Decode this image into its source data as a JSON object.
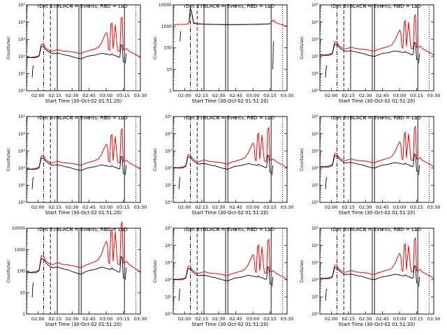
{
  "figure": {
    "ylabel": "Counts/sec",
    "xlabel": "Start Time (30-Oct-02 01:51:20)",
    "time_ticks": [
      "02:00",
      "02:15",
      "02:30",
      "02:45",
      "03:00",
      "03:15",
      "03:30"
    ],
    "colors": {
      "events": "#000000",
      "lld": "#ff0000",
      "axes": "#000000"
    }
  },
  "chart_data": [
    {
      "type": "line",
      "title": "Det 1: BLACK = Events, RED = LLD",
      "yscale": "log",
      "ylim": [
        1,
        100000
      ],
      "yticks": [
        "10⁰",
        "10¹",
        "10²",
        "10³",
        "10⁴",
        "10⁵"
      ],
      "xlim": [
        0,
        100
      ],
      "x_tick_values": [
        10,
        25,
        40,
        55,
        70,
        85,
        100
      ]
    },
    {
      "type": "line",
      "title": "Det 2: BLACK = Events, RED = LLD",
      "yscale": "log",
      "ylim": [
        1,
        10000
      ],
      "yticks": [
        "1",
        "10",
        "100",
        "1000",
        "10000"
      ],
      "xlim": [
        0,
        100
      ],
      "x_tick_values": [
        10,
        25,
        40,
        55,
        70,
        85,
        100
      ]
    },
    {
      "type": "line",
      "title": "Det 3: BLACK = Events, RED = LLD",
      "yscale": "log",
      "ylim": [
        1,
        100000
      ],
      "yticks": [
        "10⁰",
        "10¹",
        "10²",
        "10³",
        "10⁴",
        "10⁵"
      ],
      "xlim": [
        0,
        100
      ],
      "x_tick_values": [
        10,
        25,
        40,
        55,
        70,
        85,
        100
      ]
    },
    {
      "type": "line",
      "title": "Det 4: BLACK = Events, RED = LLD",
      "yscale": "log",
      "ylim": [
        1,
        100000
      ],
      "yticks": [
        "10⁰",
        "10¹",
        "10²",
        "10³",
        "10⁴",
        "10⁵"
      ],
      "xlim": [
        0,
        100
      ],
      "x_tick_values": [
        10,
        25,
        40,
        55,
        70,
        85,
        100
      ]
    },
    {
      "type": "line",
      "title": "Det 5: BLACK = Events, RED = LLD",
      "yscale": "log",
      "ylim": [
        1,
        100000
      ],
      "yticks": [
        "10⁰",
        "10¹",
        "10²",
        "10³",
        "10⁴",
        "10⁵"
      ],
      "xlim": [
        0,
        100
      ],
      "x_tick_values": [
        10,
        25,
        40,
        55,
        70,
        85,
        100
      ]
    },
    {
      "type": "line",
      "title": "Det 6: BLACK = Events, RED = LLD",
      "yscale": "log",
      "ylim": [
        1,
        100000
      ],
      "yticks": [
        "10⁰",
        "10¹",
        "10²",
        "10³",
        "10⁴",
        "10⁵"
      ],
      "xlim": [
        0,
        100
      ],
      "x_tick_values": [
        10,
        25,
        40,
        55,
        70,
        85,
        100
      ]
    },
    {
      "type": "line",
      "title": "Det 7: BLACK = Events, RED = LLD",
      "yscale": "log",
      "ylim": [
        1,
        10000
      ],
      "yticks": [
        "1",
        "10",
        "100",
        "1000",
        "10000"
      ],
      "xlim": [
        0,
        100
      ],
      "x_tick_values": [
        10,
        25,
        40,
        55,
        70,
        85,
        100
      ]
    },
    {
      "type": "line",
      "title": "Det 8: BLACK = Events, RED = LLD",
      "yscale": "log",
      "ylim": [
        1,
        100000
      ],
      "yticks": [
        "10⁰",
        "10¹",
        "10²",
        "10³",
        "10⁴",
        "10⁵"
      ],
      "xlim": [
        0,
        100
      ],
      "x_tick_values": [
        10,
        25,
        40,
        55,
        70,
        85,
        100
      ]
    },
    {
      "type": "line",
      "title": "Det 9: BLACK = Events, RED = LLD",
      "yscale": "log",
      "ylim": [
        1,
        100000
      ],
      "yticks": [
        "10⁰",
        "10¹",
        "10²",
        "10³",
        "10⁴",
        "10⁵"
      ],
      "xlim": [
        0,
        100
      ],
      "x_tick_values": [
        10,
        25,
        40,
        55,
        70,
        85,
        100
      ]
    }
  ],
  "markers": {
    "dash_dot": [
      15
    ],
    "dashed": [
      21
    ],
    "solid": [
      27,
      46,
      48,
      86
    ],
    "dotted": [
      96
    ]
  },
  "series_template": {
    "lld": [
      [
        0,
        115
      ],
      [
        4,
        110
      ],
      [
        8,
        120
      ],
      [
        11,
        140
      ],
      [
        13,
        650
      ],
      [
        15,
        620
      ],
      [
        17,
        380
      ],
      [
        19,
        300
      ],
      [
        21,
        260
      ],
      [
        23,
        250
      ],
      [
        25,
        280
      ],
      [
        28,
        310
      ],
      [
        31,
        260
      ],
      [
        34,
        250
      ],
      [
        37,
        240
      ],
      [
        40,
        230
      ],
      [
        43,
        210
      ],
      [
        46,
        190
      ],
      [
        48,
        180
      ],
      [
        51,
        230
      ],
      [
        54,
        260
      ],
      [
        57,
        300
      ],
      [
        60,
        340
      ],
      [
        63,
        420
      ],
      [
        66,
        800
      ],
      [
        68,
        1700
      ],
      [
        70,
        3000
      ],
      [
        71,
        2400
      ],
      [
        72,
        320
      ],
      [
        73,
        280
      ],
      [
        74,
        9000
      ],
      [
        75,
        11000
      ],
      [
        76,
        350
      ],
      [
        78,
        9000
      ],
      [
        79,
        1200
      ],
      [
        80,
        280
      ],
      [
        81,
        250
      ],
      [
        82,
        260
      ],
      [
        83,
        18000
      ],
      [
        84,
        25000
      ],
      [
        85,
        300
      ],
      [
        86,
        300
      ],
      [
        88,
        360
      ],
      [
        90,
        260
      ],
      [
        93,
        200
      ],
      [
        96,
        160
      ],
      [
        100,
        110
      ]
    ],
    "events": [
      [
        0,
        110
      ],
      [
        4,
        105
      ],
      [
        8,
        105
      ],
      [
        11,
        130
      ],
      [
        13,
        480
      ],
      [
        15,
        450
      ],
      [
        17,
        300
      ],
      [
        19,
        240
      ],
      [
        21,
        200
      ],
      [
        23,
        180
      ],
      [
        25,
        190
      ],
      [
        28,
        190
      ],
      [
        31,
        170
      ],
      [
        34,
        150
      ],
      [
        37,
        140
      ],
      [
        40,
        120
      ],
      [
        43,
        105
      ],
      [
        46,
        95
      ],
      [
        48,
        90
      ],
      [
        51,
        110
      ],
      [
        54,
        130
      ],
      [
        57,
        140
      ],
      [
        60,
        150
      ],
      [
        63,
        170
      ],
      [
        66,
        190
      ],
      [
        68,
        180
      ],
      [
        70,
        170
      ],
      [
        72,
        160
      ],
      [
        74,
        150
      ],
      [
        75,
        180
      ],
      [
        76,
        150
      ],
      [
        78,
        140
      ],
      [
        80,
        120
      ],
      [
        81,
        110
      ],
      [
        82,
        120
      ],
      [
        83,
        600
      ],
      [
        84,
        550
      ],
      [
        85,
        60
      ],
      [
        86,
        60
      ]
    ],
    "events_drop": [
      [
        5,
        6
      ],
      [
        5.5,
        20
      ],
      [
        6,
        30
      ]
    ],
    "events_tail": [
      [
        86.8,
        40
      ],
      [
        87.2,
        80
      ],
      [
        87.6,
        150
      ]
    ]
  }
}
